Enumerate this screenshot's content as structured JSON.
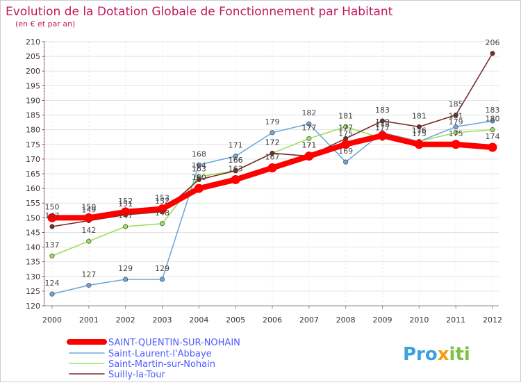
{
  "chart_data": {
    "type": "line",
    "title": "Evolution de la Dotation Globale de Fonctionnement par Habitant",
    "subtitle": "(en € et par an)",
    "xlabel": "",
    "ylabel": "",
    "x": [
      "2000",
      "2001",
      "2002",
      "2003",
      "2004",
      "2005",
      "2006",
      "2007",
      "2008",
      "2009",
      "2010",
      "2011",
      "2012"
    ],
    "ylim": [
      120,
      210
    ],
    "yticks": [
      120,
      125,
      130,
      135,
      140,
      145,
      150,
      155,
      160,
      165,
      170,
      175,
      180,
      185,
      190,
      195,
      200,
      205,
      210
    ],
    "grid": true,
    "legend_position": "bottom-left",
    "series": [
      {
        "name": "SAINT-QUENTIN-SUR-NOHAIN",
        "color": "#ff0000",
        "values": [
          150,
          150,
          152,
          153,
          160,
          163,
          167,
          171,
          175,
          178,
          175,
          175,
          174
        ]
      },
      {
        "name": "Saint-Laurent-l'Abbaye",
        "color": "#6fa8dc",
        "values": [
          124,
          127,
          129,
          129,
          168,
          171,
          179,
          182,
          169,
          179,
          176,
          181,
          183
        ]
      },
      {
        "name": "Saint-Martin-sur-Nohain",
        "color": "#99e05c",
        "values": [
          137,
          142,
          147,
          148,
          164,
          166,
          172,
          177,
          181,
          177,
          176,
          179,
          180
        ]
      },
      {
        "name": "Suilly-la-Tour",
        "color": "#7b2b2b",
        "values": [
          147,
          149,
          151,
          152,
          163,
          166,
          172,
          171,
          177,
          183,
          181,
          185,
          206
        ]
      }
    ]
  },
  "brand": {
    "parts": [
      "Pro",
      "x",
      "iti"
    ],
    "colors": [
      "#3aa0e0",
      "#f39c12",
      "#7cc242"
    ]
  }
}
